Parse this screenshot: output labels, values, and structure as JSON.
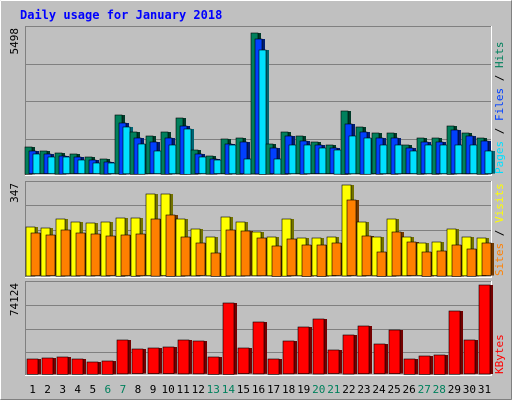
{
  "title": "Daily usage for January 2018",
  "colors": {
    "background": "#c0c0c0",
    "plot": "#c0c0c0",
    "title": "#0000ff",
    "hits": "#00805c",
    "files": "#0040ff",
    "pages": "#00e0ff",
    "visits": "#ffff00",
    "sites": "#ff8000",
    "kbytes": "#ff0000",
    "weekend": "#00805c",
    "weekday": "#000000"
  },
  "chart_data": [
    {
      "type": "bar",
      "name": "top",
      "ymax": 5498,
      "max_label": "5498",
      "legend": [
        {
          "text": "Hits",
          "color": "#00805c"
        },
        {
          "text": "Files",
          "color": "#0040ff"
        },
        {
          "text": "Pages",
          "color": "#00e0ff"
        }
      ],
      "categories": [
        "1",
        "2",
        "3",
        "4",
        "5",
        "6",
        "7",
        "8",
        "9",
        "10",
        "11",
        "12",
        "13",
        "14",
        "15",
        "16",
        "17",
        "18",
        "19",
        "20",
        "21",
        "22",
        "23",
        "24",
        "25",
        "26",
        "27",
        "28",
        "29",
        "30",
        "31"
      ],
      "series": [
        {
          "name": "Hits",
          "values": [
            1040,
            864,
            806,
            749,
            634,
            576,
            2247,
            1613,
            1441,
            1613,
            2132,
            922,
            691,
            1326,
            1383,
            5382,
            1153,
            1613,
            1441,
            1210,
            1095,
            2420,
            1786,
            1556,
            1556,
            1095,
            1383,
            1383,
            1844,
            1556,
            1383
          ]
        },
        {
          "name": "Files",
          "values": [
            864,
            749,
            691,
            634,
            518,
            461,
            1959,
            1383,
            1210,
            1383,
            1844,
            749,
            576,
            1153,
            1210,
            5152,
            979,
            1441,
            1268,
            1095,
            979,
            1901,
            1613,
            1383,
            1383,
            979,
            1210,
            1210,
            1671,
            1441,
            1268
          ]
        },
        {
          "name": "Pages",
          "values": [
            749,
            634,
            634,
            518,
            403,
            403,
            1786,
            1153,
            864,
            1095,
            1728,
            634,
            518,
            1095,
            576,
            4749,
            576,
            1095,
            1095,
            979,
            922,
            1441,
            1383,
            1095,
            1095,
            864,
            1095,
            1095,
            1095,
            1095,
            864
          ]
        }
      ]
    },
    {
      "type": "bar",
      "name": "middle",
      "ymax": 347,
      "max_label": "347",
      "legend": [
        {
          "text": "Visits",
          "color": "#ffff00"
        },
        {
          "text": "Sites",
          "color": "#ff8000"
        }
      ],
      "categories": [
        "1",
        "2",
        "3",
        "4",
        "5",
        "6",
        "7",
        "8",
        "9",
        "10",
        "11",
        "12",
        "13",
        "14",
        "15",
        "16",
        "17",
        "18",
        "19",
        "20",
        "21",
        "22",
        "23",
        "24",
        "25",
        "26",
        "27",
        "28",
        "29",
        "30",
        "31"
      ],
      "series": [
        {
          "name": "Visits",
          "values": [
            187,
            183,
            218,
            206,
            202,
            206,
            222,
            222,
            311,
            311,
            218,
            179,
            148,
            226,
            206,
            167,
            148,
            218,
            144,
            144,
            148,
            347,
            206,
            148,
            218,
            148,
            124,
            128,
            179,
            148,
            144
          ]
        },
        {
          "name": "Sites",
          "values": [
            163,
            155,
            175,
            163,
            159,
            151,
            155,
            159,
            218,
            234,
            148,
            124,
            89,
            175,
            171,
            144,
            116,
            140,
            120,
            120,
            124,
            288,
            151,
            93,
            167,
            128,
            93,
            96,
            120,
            104,
            124
          ]
        }
      ]
    },
    {
      "type": "bar",
      "name": "bottom",
      "ymax": 74124,
      "max_label": "74124",
      "legend": [
        {
          "text": "KBytes",
          "color": "#ff0000"
        }
      ],
      "categories": [
        "1",
        "2",
        "3",
        "4",
        "5",
        "6",
        "7",
        "8",
        "9",
        "10",
        "11",
        "12",
        "13",
        "14",
        "15",
        "16",
        "17",
        "18",
        "19",
        "20",
        "21",
        "22",
        "23",
        "24",
        "25",
        "26",
        "27",
        "28",
        "29",
        "30",
        "31"
      ],
      "series": [
        {
          "name": "KBytes",
          "values": [
            12770,
            13630,
            14490,
            12770,
            10200,
            11060,
            28230,
            20500,
            21360,
            22220,
            28230,
            27370,
            14490,
            59530,
            21360,
            43230,
            12770,
            27370,
            38910,
            45800,
            19640,
            32520,
            39780,
            24800,
            36340,
            12770,
            15350,
            16210,
            52660,
            28230,
            74124
          ]
        }
      ]
    }
  ],
  "weekend_days": [
    6,
    7,
    13,
    14,
    20,
    21,
    27,
    28
  ]
}
